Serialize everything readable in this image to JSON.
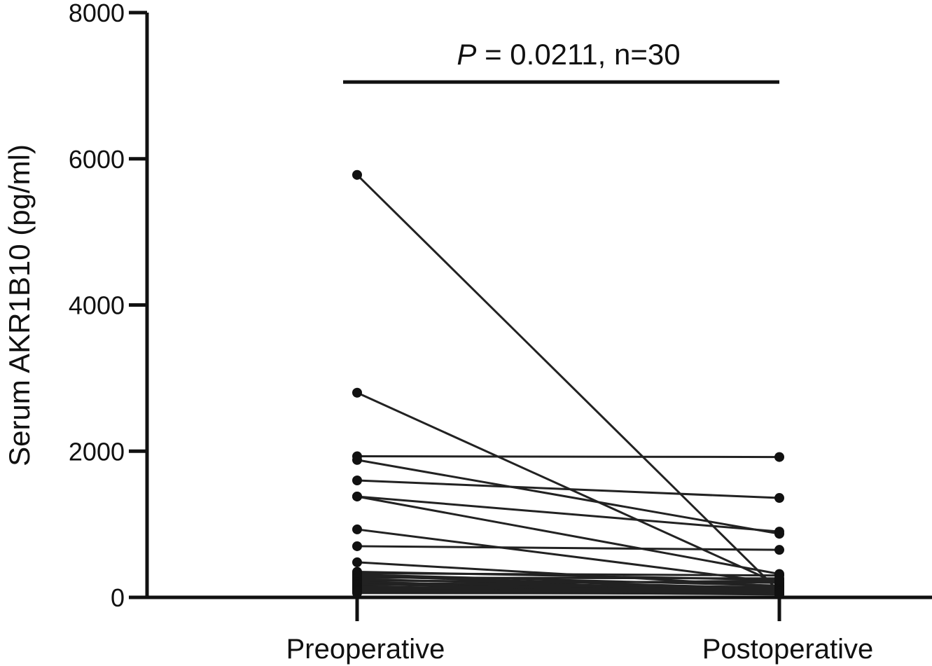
{
  "chart_data": {
    "type": "line",
    "categories": [
      "Preoperative",
      "Postoperative"
    ],
    "ylabel": "Serum AKR1B10 (pg/ml)",
    "ylim": [
      0,
      8000
    ],
    "yticks": [
      0,
      2000,
      4000,
      6000,
      8000
    ],
    "grid": false,
    "annotation": {
      "p_symbol": "P",
      "text": " = 0.0211, n=30",
      "bracket_y": 7050
    },
    "pairs": [
      [
        5780,
        80
      ],
      [
        2800,
        180
      ],
      [
        1930,
        1920
      ],
      [
        1880,
        870
      ],
      [
        1600,
        1360
      ],
      [
        1380,
        900
      ],
      [
        1380,
        320
      ],
      [
        930,
        200
      ],
      [
        700,
        650
      ],
      [
        480,
        150
      ],
      [
        350,
        240
      ],
      [
        330,
        300
      ],
      [
        310,
        160
      ],
      [
        290,
        120
      ],
      [
        270,
        260
      ],
      [
        250,
        100
      ],
      [
        230,
        200
      ],
      [
        210,
        90
      ],
      [
        200,
        140
      ],
      [
        180,
        80
      ],
      [
        170,
        230
      ],
      [
        150,
        60
      ],
      [
        140,
        110
      ],
      [
        130,
        70
      ],
      [
        120,
        90
      ],
      [
        110,
        50
      ],
      [
        100,
        60
      ],
      [
        90,
        80
      ],
      [
        80,
        40
      ],
      [
        60,
        50
      ]
    ]
  }
}
